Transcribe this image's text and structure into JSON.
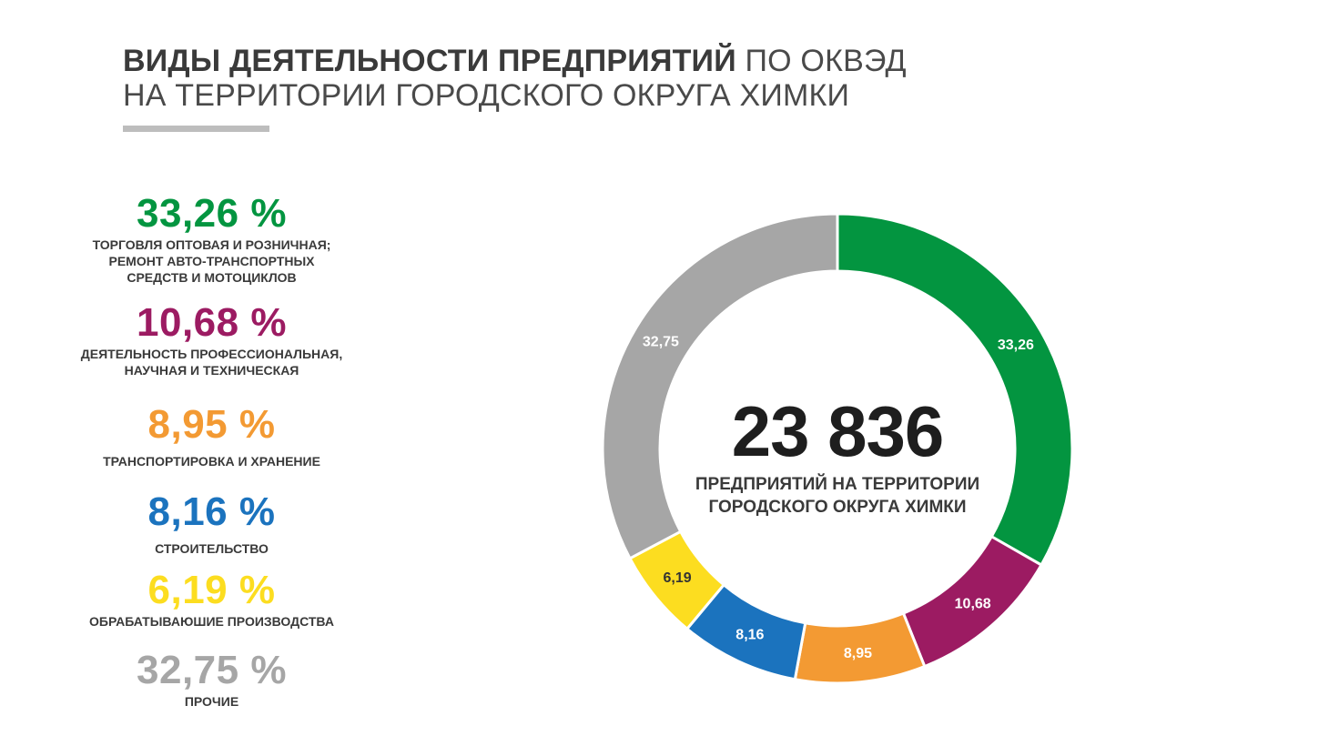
{
  "header": {
    "title_bold": "ВИДЫ ДЕЯТЕЛЬНОСТИ ПРЕДПРИЯТИЙ",
    "title_light": "ПО ОКВЭД",
    "title_line2": "НА ТЕРРИТОРИИ ГОРОДСКОГО ОКРУГА ХИМКИ"
  },
  "center": {
    "total": "23 836",
    "label_line1": "ПРЕДПРИЯТИЙ НА ТЕРРИТОРИИ",
    "label_line2": "ГОРОДСКОГО ОКРУГА ХИМКИ"
  },
  "legend": [
    {
      "pct": "33,26 %",
      "label_lines": [
        "ТОРГОВЛЯ ОПТОВАЯ И РОЗНИЧНАЯ;",
        "РЕМОНТ АВТО-ТРАНСПОРТНЫХ",
        "СРЕДСТВ И МОТОЦИКЛОВ"
      ]
    },
    {
      "pct": "10,68 %",
      "label_lines": [
        "ДЕЯТЕЛЬНОСТЬ ПРОФЕССИОНАЛЬНАЯ,",
        "НАУЧНАЯ И ТЕХНИЧЕСКАЯ"
      ]
    },
    {
      "pct": "8,95 %",
      "label_lines": [
        "ТРАНСПОРТИРОВКА И ХРАНЕНИЕ"
      ]
    },
    {
      "pct": "8,16 %",
      "label_lines": [
        "СТРОИТЕЛЬСТВО"
      ]
    },
    {
      "pct": "6,19 %",
      "label_lines": [
        "ОБРАБАТЫВАЮШИЕ ПРОИЗВОДСТВА"
      ]
    },
    {
      "pct": "32,75 %",
      "label_lines": [
        "ПРОЧИЕ"
      ]
    }
  ],
  "chart_data": {
    "type": "pie",
    "donut": true,
    "start_angle_deg": 0,
    "direction": "clockwise",
    "slices": [
      {
        "value": 33.26,
        "label": "33,26",
        "color": "#039540"
      },
      {
        "value": 10.68,
        "label": "10,68",
        "color": "#9c1b62"
      },
      {
        "value": 8.95,
        "label": "8,95",
        "color": "#f39a33"
      },
      {
        "value": 8.16,
        "label": "8,16",
        "color": "#1b73be"
      },
      {
        "value": 6.19,
        "label": "6,19",
        "color": "#fcdd20"
      },
      {
        "value": 32.75,
        "label": "32,75",
        "color": "#a6a6a6"
      }
    ]
  }
}
